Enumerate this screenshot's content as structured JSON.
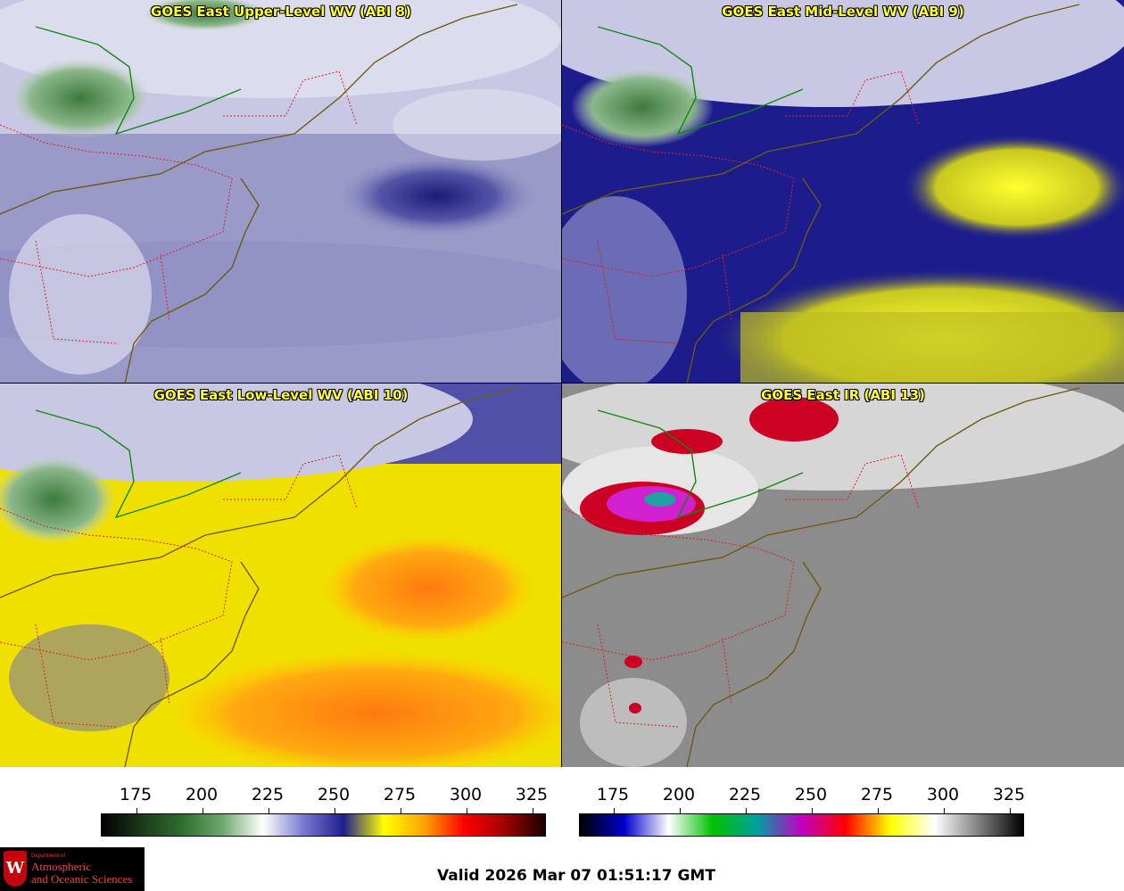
{
  "panels": [
    {
      "title": "GOES East Upper-Level WV (ABI 8)"
    },
    {
      "title": "GOES East Mid-Level WV (ABI 9)"
    },
    {
      "title": "GOES East Low-Level WV (ABI 10)"
    },
    {
      "title": "GOES East IR (ABI 13)"
    }
  ],
  "colorbars": [
    {
      "ticks": [
        "175",
        "200",
        "225",
        "250",
        "275",
        "300",
        "325"
      ],
      "colors": [
        "#000000",
        "#1c3a1c",
        "#2e6e2e",
        "#6fa86f",
        "#ffffff",
        "#7a7ad0",
        "#1e1e8c",
        "#ffff00",
        "#ffa500",
        "#ff0000",
        "#a00000",
        "#1a0000"
      ]
    },
    {
      "ticks": [
        "175",
        "200",
        "225",
        "250",
        "275",
        "300",
        "325"
      ],
      "colors": [
        "#000000",
        "#0000cd",
        "#ffffff",
        "#00c000",
        "#00a0a0",
        "#c000c0",
        "#ff0000",
        "#ffff00",
        "#ffffff",
        "#808080",
        "#000000"
      ]
    }
  ],
  "logo": {
    "dept": "Department of",
    "line1": "Atmospheric",
    "line2": "and Oceanic Sciences",
    "seal": "W"
  },
  "valid_time": "Valid 2026 Mar 07 01:51:17 GMT"
}
